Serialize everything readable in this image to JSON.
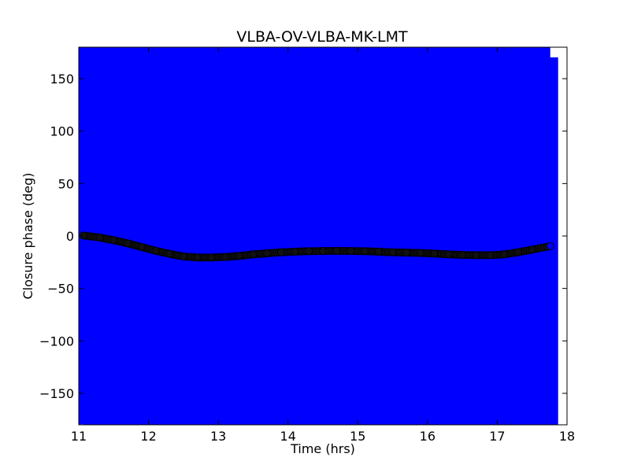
{
  "chart_data": {
    "type": "scatter",
    "title": "VLBA-OV-VLBA-MK-LMT",
    "xlabel": "Time (hrs)",
    "ylabel": "Closure phase (deg)",
    "xlim": [
      11,
      18
    ],
    "ylim": [
      -180,
      180
    ],
    "xticks": [
      "11",
      "12",
      "13",
      "14",
      "15",
      "16",
      "17",
      "18"
    ],
    "yticks": [
      "−150",
      "−100",
      "−50",
      "0",
      "50",
      "100",
      "150"
    ],
    "grid": false,
    "series": [
      {
        "marker_color": "#0000ff",
        "marker_edge_color": "#000000",
        "errorbar_color": "#0000ff",
        "errorbar_halfwidth": 180,
        "x": [
          11.07,
          11.3,
          11.5,
          11.7,
          11.9,
          12.1,
          12.3,
          12.5,
          12.7,
          12.9,
          13.1,
          13.3,
          13.5,
          13.7,
          13.9,
          14.1,
          14.3,
          14.5,
          14.7,
          14.9,
          15.1,
          15.3,
          15.5,
          15.7,
          15.9,
          16.1,
          16.3,
          16.5,
          16.7,
          16.9,
          17.1,
          17.3,
          17.5,
          17.76
        ],
        "y": [
          0.5,
          -1.5,
          -4,
          -7,
          -10.5,
          -14,
          -17,
          -19.5,
          -20.5,
          -20.5,
          -20,
          -19,
          -17.5,
          -16.5,
          -15.5,
          -15,
          -14.5,
          -14.3,
          -14.2,
          -14.3,
          -14.5,
          -15,
          -15.5,
          -15.8,
          -16.2,
          -16.8,
          -17.5,
          -18,
          -18.3,
          -18.3,
          -17.5,
          -15.5,
          -13,
          -9.7
        ]
      }
    ]
  }
}
